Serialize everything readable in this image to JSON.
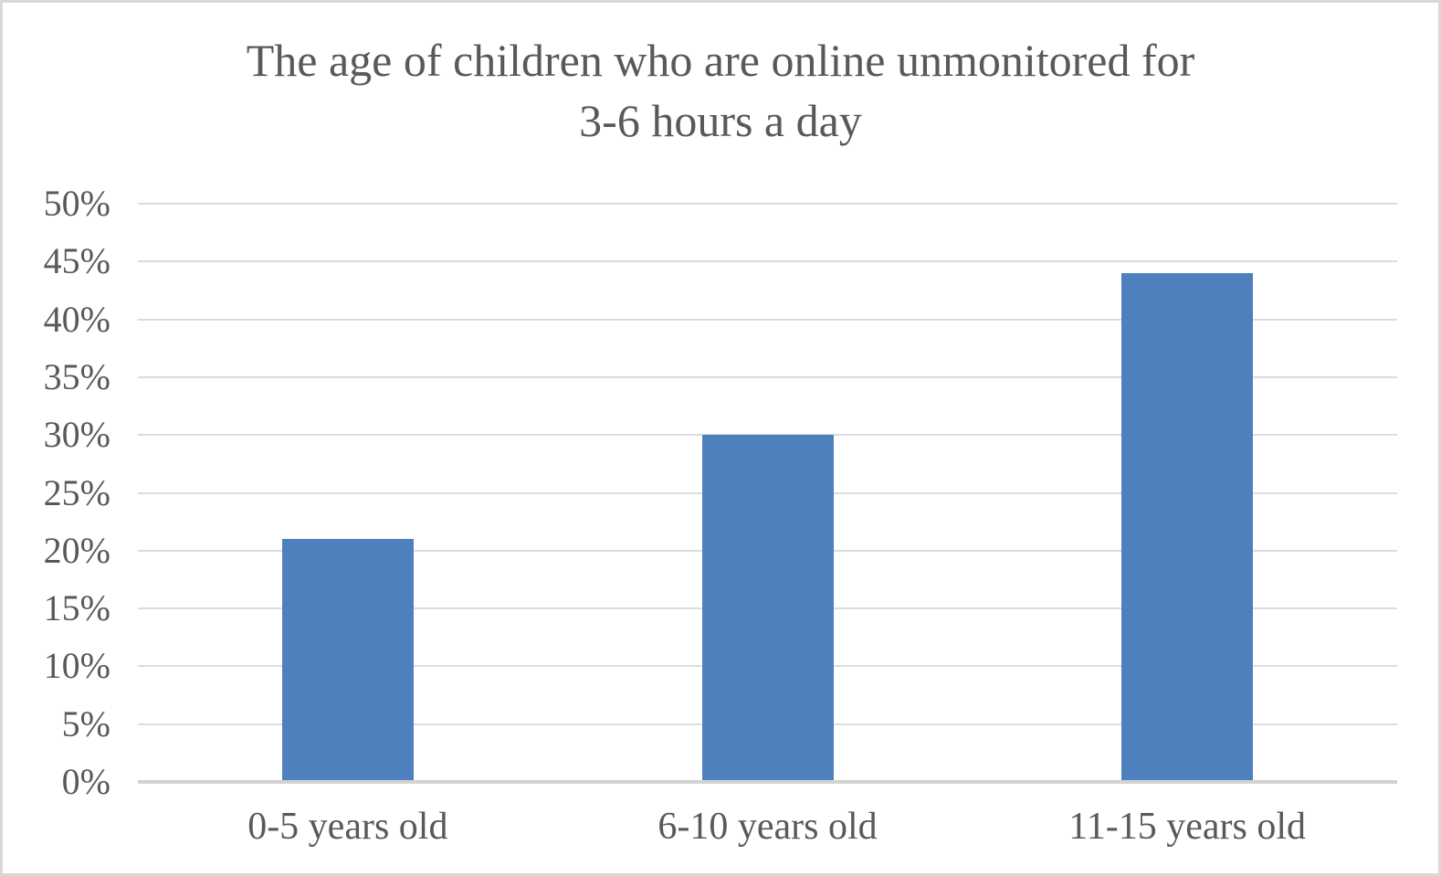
{
  "chart_data": {
    "type": "bar",
    "title": "The age of children who are online unmonitored for 3-6 hours a day",
    "title_lines": [
      "The age of children who are online unmonitored for",
      "3-6 hours a day"
    ],
    "categories": [
      "0-5 years old",
      "6-10 years old",
      "11-15 years old"
    ],
    "values": [
      21,
      30,
      44
    ],
    "value_unit": "percent",
    "xlabel": "",
    "ylabel": "",
    "ylim": [
      0,
      50
    ],
    "ytick_step": 5,
    "ytick_labels": [
      "0%",
      "5%",
      "10%",
      "15%",
      "20%",
      "25%",
      "30%",
      "35%",
      "40%",
      "45%",
      "50%"
    ],
    "grid": "horizontal",
    "legend": "none",
    "colors": {
      "bar": "#4e80bd",
      "text": "#595959",
      "gridline": "#dcdcdc",
      "axis_line": "#d2d2d2",
      "frame_border": "#d9d9d9",
      "background": "#ffffff"
    }
  }
}
